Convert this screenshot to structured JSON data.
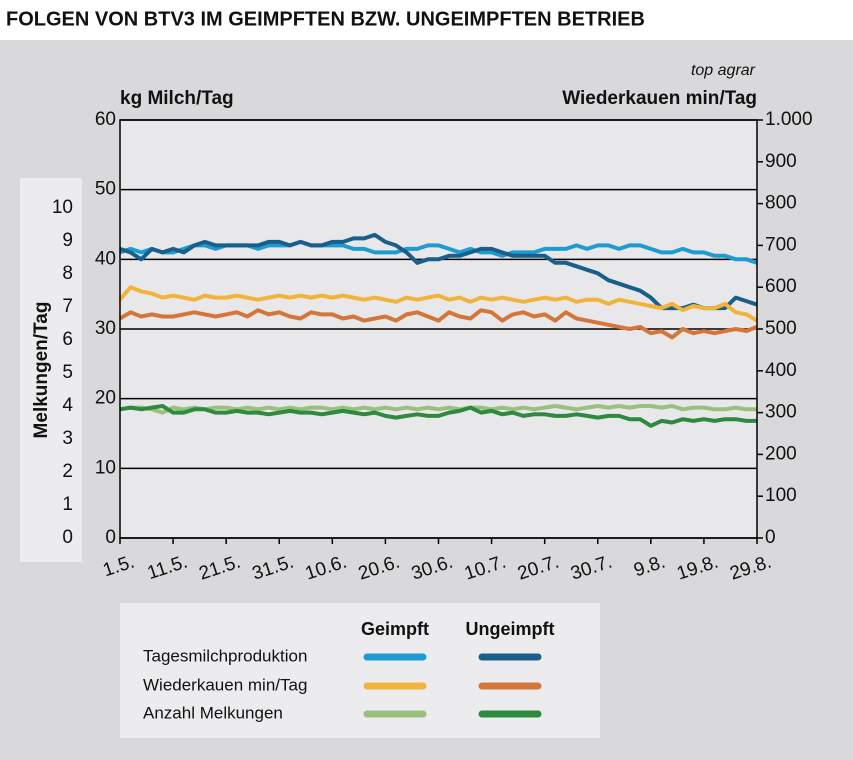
{
  "chart_data": {
    "type": "line",
    "title": "FOLGEN VON BTV3 IM GEIMPFTEN BZW. UNGEIMPFTEN BETRIEB",
    "source": "top agrar",
    "ylabel": "kg Milch/Tag",
    "y2label": "Wiederkauen min/Tag",
    "y3label": "Melkungen/Tag",
    "categories": [
      "1.5.",
      null,
      null,
      null,
      null,
      "11.5.",
      null,
      null,
      null,
      null,
      "21.5.",
      null,
      null,
      null,
      null,
      "31.5.",
      null,
      null,
      null,
      null,
      "10.6.",
      null,
      null,
      null,
      null,
      "20.6.",
      null,
      null,
      null,
      null,
      "30.6.",
      null,
      null,
      null,
      null,
      "10.7.",
      null,
      null,
      null,
      null,
      "20.7.",
      null,
      null,
      null,
      null,
      "30.7.",
      null,
      null,
      null,
      null,
      "9.8.",
      null,
      null,
      null,
      null,
      "19.8.",
      null,
      null,
      null,
      null,
      "29.8."
    ],
    "ylim": [
      0,
      60
    ],
    "yticks": [
      0,
      10,
      20,
      30,
      40,
      50,
      60
    ],
    "y2lim": [
      0,
      1000
    ],
    "y2ticks": [
      0,
      100,
      200,
      300,
      400,
      500,
      600,
      700,
      800,
      900,
      {
        "value": 1000,
        "label": "1.000"
      }
    ],
    "y3lim": [
      0,
      10
    ],
    "y3ticks": [
      0,
      1,
      2,
      3,
      4,
      5,
      6,
      7,
      8,
      9,
      10
    ],
    "grid": true,
    "series": [
      {
        "name": "Tagesmilchproduktion",
        "axis": "y",
        "lines": [
          {
            "name": "Geimpft",
            "color": "#1e9bd0",
            "values": [
              41,
              41.5,
              41,
              41.5,
              41,
              41,
              41.5,
              42,
              42,
              41.5,
              42,
              42,
              42,
              41.5,
              42,
              42,
              42,
              42.5,
              42,
              42,
              42,
              42,
              41.5,
              41.5,
              41,
              41,
              41,
              41.5,
              41.5,
              42,
              42,
              41.5,
              41,
              41.5,
              41,
              41,
              40.5,
              41,
              41,
              41,
              41.5,
              41.5,
              41.5,
              42,
              41.5,
              42,
              42,
              41.5,
              42,
              42,
              41.5,
              41,
              41,
              41.5,
              41,
              41,
              40.5,
              40.5,
              40,
              40,
              39.5
            ]
          },
          {
            "name": "Ungeimpft",
            "color": "#1a5f8a",
            "values": [
              41.5,
              41,
              40,
              41.5,
              41,
              41.5,
              41,
              42,
              42.5,
              42,
              42,
              42,
              42,
              42,
              42.5,
              42.5,
              42,
              42.5,
              42,
              42,
              42.5,
              42.5,
              43,
              43,
              43.5,
              42.5,
              42,
              41,
              39.5,
              40,
              40,
              40.5,
              40.5,
              41,
              41.5,
              41.5,
              41,
              40.5,
              40.5,
              40.5,
              40.5,
              39.5,
              39.5,
              39,
              38.5,
              38,
              37,
              36.5,
              36,
              35.5,
              34.5,
              33,
              33,
              33,
              33.5,
              33,
              33,
              33,
              34.5,
              34,
              33.5
            ]
          }
        ]
      },
      {
        "name": "Wiederkauen min/Tag",
        "axis": "y2",
        "lines": [
          {
            "name": "Geimpft",
            "color": "#f0b43c",
            "values": [
              570,
              600,
              590,
              585,
              575,
              580,
              575,
              570,
              580,
              575,
              575,
              580,
              575,
              570,
              575,
              580,
              575,
              580,
              575,
              580,
              575,
              580,
              575,
              570,
              575,
              570,
              565,
              575,
              570,
              575,
              580,
              570,
              575,
              565,
              575,
              570,
              575,
              570,
              565,
              570,
              575,
              570,
              575,
              565,
              570,
              570,
              560,
              570,
              565,
              560,
              555,
              550,
              560,
              545,
              555,
              550,
              550,
              560,
              540,
              535,
              520
            ]
          },
          {
            "name": "Ungeimpft",
            "color": "#d4763a",
            "values": [
              525,
              540,
              530,
              535,
              530,
              530,
              535,
              540,
              535,
              530,
              535,
              540,
              530,
              545,
              535,
              540,
              530,
              525,
              540,
              535,
              535,
              525,
              530,
              520,
              525,
              530,
              520,
              535,
              540,
              530,
              520,
              540,
              530,
              525,
              545,
              540,
              520,
              535,
              540,
              530,
              535,
              520,
              540,
              525,
              520,
              515,
              510,
              505,
              500,
              505,
              490,
              495,
              480,
              500,
              490,
              495,
              490,
              495,
              500,
              495,
              505
            ]
          }
        ]
      },
      {
        "name": "Anzahl Melkungen",
        "axis": "y3",
        "lines": [
          {
            "name": "Geimpft",
            "color": "#9bbf7f",
            "values": [
              3.9,
              3.95,
              3.95,
              3.9,
              3.8,
              3.95,
              3.9,
              3.95,
              3.9,
              3.95,
              3.95,
              3.9,
              3.95,
              3.9,
              3.95,
              3.9,
              3.95,
              3.9,
              3.95,
              3.95,
              3.9,
              3.95,
              3.9,
              3.95,
              3.9,
              3.95,
              3.9,
              3.95,
              3.9,
              3.95,
              3.9,
              3.95,
              3.9,
              3.95,
              3.95,
              3.9,
              3.95,
              3.9,
              3.95,
              3.9,
              3.95,
              4.0,
              3.95,
              3.9,
              3.95,
              4.0,
              3.95,
              4.0,
              3.95,
              4.0,
              4.0,
              3.95,
              4.0,
              3.9,
              3.95,
              3.95,
              3.9,
              3.9,
              3.95,
              3.9,
              3.9
            ]
          },
          {
            "name": "Ungeimpft",
            "color": "#2e8a3e",
            "values": [
              3.9,
              3.95,
              3.9,
              3.95,
              4.0,
              3.8,
              3.8,
              3.9,
              3.9,
              3.8,
              3.8,
              3.85,
              3.8,
              3.8,
              3.75,
              3.8,
              3.85,
              3.8,
              3.8,
              3.75,
              3.8,
              3.85,
              3.8,
              3.75,
              3.8,
              3.7,
              3.65,
              3.7,
              3.75,
              3.7,
              3.7,
              3.8,
              3.85,
              3.95,
              3.8,
              3.85,
              3.75,
              3.8,
              3.7,
              3.75,
              3.75,
              3.7,
              3.7,
              3.75,
              3.7,
              3.65,
              3.7,
              3.7,
              3.6,
              3.6,
              3.4,
              3.55,
              3.5,
              3.6,
              3.55,
              3.6,
              3.55,
              3.6,
              3.6,
              3.55,
              3.55
            ]
          }
        ]
      }
    ]
  }
}
